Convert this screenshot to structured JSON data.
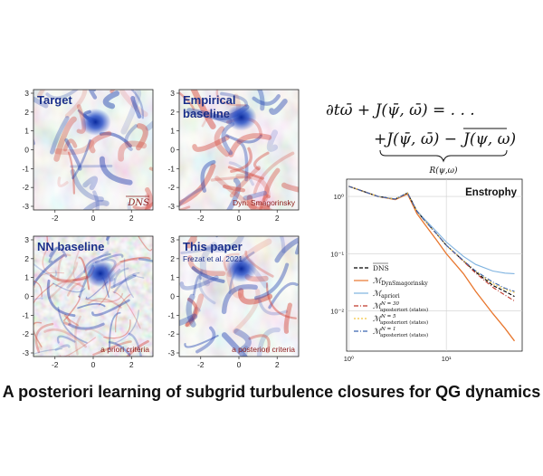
{
  "panels": [
    {
      "title_lines": [
        "Target"
      ],
      "corner_label": "DNS",
      "corner_overline": true,
      "corner_color": "#8b1a1a",
      "has_vortex": true,
      "noise": "smooth"
    },
    {
      "title_lines": [
        "Empirical",
        "baseline"
      ],
      "corner_label": "Dyn. Smagorinsky",
      "corner_overline": false,
      "corner_color": "#8b1a1a",
      "has_vortex": true,
      "noise": "smooth"
    },
    {
      "title_lines": [
        "NN baseline"
      ],
      "corner_label": "a priori criteria",
      "corner_overline": false,
      "corner_color": "#8b1a1a",
      "has_vortex": true,
      "noise": "grainy"
    },
    {
      "title_lines": [
        "This paper"
      ],
      "subtitle": "Frezat et al. 2021",
      "corner_label": "a posteriori criteria",
      "corner_overline": false,
      "corner_color": "#8b1a1a",
      "has_vortex": true,
      "noise": "smooth"
    }
  ],
  "panel_axes": {
    "y_ticks": [
      "3",
      "2",
      "1",
      "0",
      "-1",
      "-2",
      "-3"
    ],
    "x_ticks": [
      "-2",
      "0",
      "2"
    ]
  },
  "equation": {
    "line1": "∂tω̄ + J(ψ̄, ω̄) = . . .",
    "line2_a": "+J(ψ̄, ω̄) − ",
    "line2_b": "J(ψ, ω)",
    "underbrace_label": "R(ψ,ω)"
  },
  "chart_data": {
    "type": "line",
    "title": "Enstrophy",
    "xscale": "log",
    "yscale": "log",
    "xlim": [
      0.95,
      60
    ],
    "ylim": [
      0.002,
      2
    ],
    "x_tick_labels": [
      "10⁰",
      "10¹"
    ],
    "y_tick_labels": [
      "10⁰",
      "10⁻¹",
      "10⁻²"
    ],
    "grid": true,
    "legend_position": "lower-left",
    "series": [
      {
        "name": "DNS (filtered)",
        "color": "#000000",
        "dash": "4,2",
        "x": [
          1,
          2,
          3,
          4,
          5,
          6,
          8,
          10,
          15,
          20,
          30,
          40,
          50
        ],
        "y": [
          1.5,
          1.0,
          0.9,
          1.15,
          0.55,
          0.38,
          0.22,
          0.14,
          0.075,
          0.048,
          0.028,
          0.022,
          0.018
        ]
      },
      {
        "name": "Dyn Smagorinsky",
        "color": "#e8762d",
        "dash": "",
        "x": [
          1,
          2,
          3,
          4,
          5,
          6,
          8,
          10,
          15,
          20,
          30,
          40,
          50
        ],
        "y": [
          1.5,
          1.0,
          0.88,
          1.1,
          0.5,
          0.33,
          0.17,
          0.1,
          0.045,
          0.022,
          0.009,
          0.005,
          0.003
        ]
      },
      {
        "name": "apriori",
        "color": "#7fb3e0",
        "dash": "",
        "x": [
          1,
          2,
          3,
          4,
          5,
          6,
          8,
          10,
          15,
          20,
          30,
          40,
          50
        ],
        "y": [
          1.5,
          1.0,
          0.9,
          1.15,
          0.56,
          0.4,
          0.24,
          0.16,
          0.09,
          0.065,
          0.05,
          0.046,
          0.045
        ]
      },
      {
        "name": "aposteriori (states) N=30",
        "color": "#c0392b",
        "dash": "5,2,1,2",
        "x": [
          1,
          2,
          3,
          4,
          5,
          6,
          8,
          10,
          15,
          20,
          30,
          40,
          50
        ],
        "y": [
          1.5,
          1.0,
          0.9,
          1.15,
          0.55,
          0.38,
          0.22,
          0.14,
          0.074,
          0.046,
          0.026,
          0.019,
          0.015
        ]
      },
      {
        "name": "aposteriori (states) N=5",
        "color": "#f4c542",
        "dash": "2,2",
        "x": [
          1,
          2,
          3,
          4,
          5,
          6,
          8,
          10,
          15,
          20,
          30,
          40,
          50
        ],
        "y": [
          1.5,
          1.0,
          0.9,
          1.15,
          0.55,
          0.38,
          0.22,
          0.14,
          0.076,
          0.05,
          0.03,
          0.024,
          0.021
        ]
      },
      {
        "name": "aposteriori (states) N=1",
        "color": "#3a66b0",
        "dash": "5,2,1,2",
        "x": [
          1,
          2,
          3,
          4,
          5,
          6,
          8,
          10,
          15,
          20,
          30,
          40,
          50
        ],
        "y": [
          1.5,
          1.0,
          0.9,
          1.15,
          0.55,
          0.38,
          0.22,
          0.14,
          0.076,
          0.05,
          0.032,
          0.025,
          0.022
        ]
      }
    ],
    "legend": [
      {
        "main": "DNS",
        "overline": true,
        "sub": "",
        "sup": ""
      },
      {
        "main": "M",
        "overline": false,
        "sub": "DynSmagorinsky",
        "sup": ""
      },
      {
        "main": "M",
        "overline": false,
        "sub": "apriori",
        "sup": ""
      },
      {
        "main": "M",
        "overline": false,
        "sub": "aposteriori (states)",
        "sup": "N = 30"
      },
      {
        "main": "M",
        "overline": false,
        "sub": "aposteriori (states)",
        "sup": "N = 5"
      },
      {
        "main": "M",
        "overline": false,
        "sub": "aposteriori (states)",
        "sup": "N = 1"
      }
    ]
  },
  "caption": "A posteriori learning of subgrid turbulence closures for QG dynamics",
  "colors": {
    "red": "#d4463a",
    "blue": "#1f3fae",
    "title_blue": "#1a2f8a",
    "corner_red": "#8b1a1a"
  }
}
